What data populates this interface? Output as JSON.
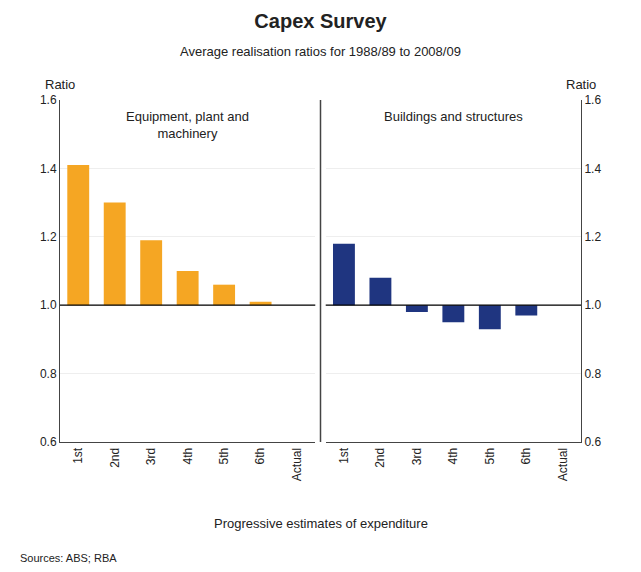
{
  "title": "Capex Survey",
  "subtitle": "Average realisation ratios for 1988/89 to 2008/09",
  "xlabel": "Progressive estimates of expenditure",
  "source": "Sources: ABS; RBA",
  "chart_data": [
    {
      "type": "bar",
      "title": "Equipment, plant and\nmachinery",
      "ylabel": "Ratio",
      "categories": [
        "1st",
        "2nd",
        "3rd",
        "4th",
        "5th",
        "6th",
        "Actual"
      ],
      "values": [
        1.41,
        1.3,
        1.19,
        1.1,
        1.06,
        1.01,
        1.0
      ],
      "baseline": 1.0,
      "color": "#F5A623",
      "ylim": [
        0.6,
        1.6
      ],
      "yticks": [
        0.6,
        0.8,
        {
          "value": 1.0,
          "label": "1.0"
        },
        1.2,
        1.4,
        1.6
      ],
      "grid": true
    },
    {
      "type": "bar",
      "title": "Buildings and structures",
      "ylabel": "Ratio",
      "categories": [
        "1st",
        "2nd",
        "3rd",
        "4th",
        "5th",
        "6th",
        "Actual"
      ],
      "values": [
        1.18,
        1.08,
        0.98,
        0.95,
        0.93,
        0.97,
        1.0
      ],
      "baseline": 1.0,
      "color": "#1F3580",
      "ylim": [
        0.6,
        1.6
      ],
      "yticks": [
        0.6,
        0.8,
        {
          "value": 1.0,
          "label": "1.0"
        },
        1.2,
        1.4,
        1.6
      ],
      "grid": true
    }
  ]
}
